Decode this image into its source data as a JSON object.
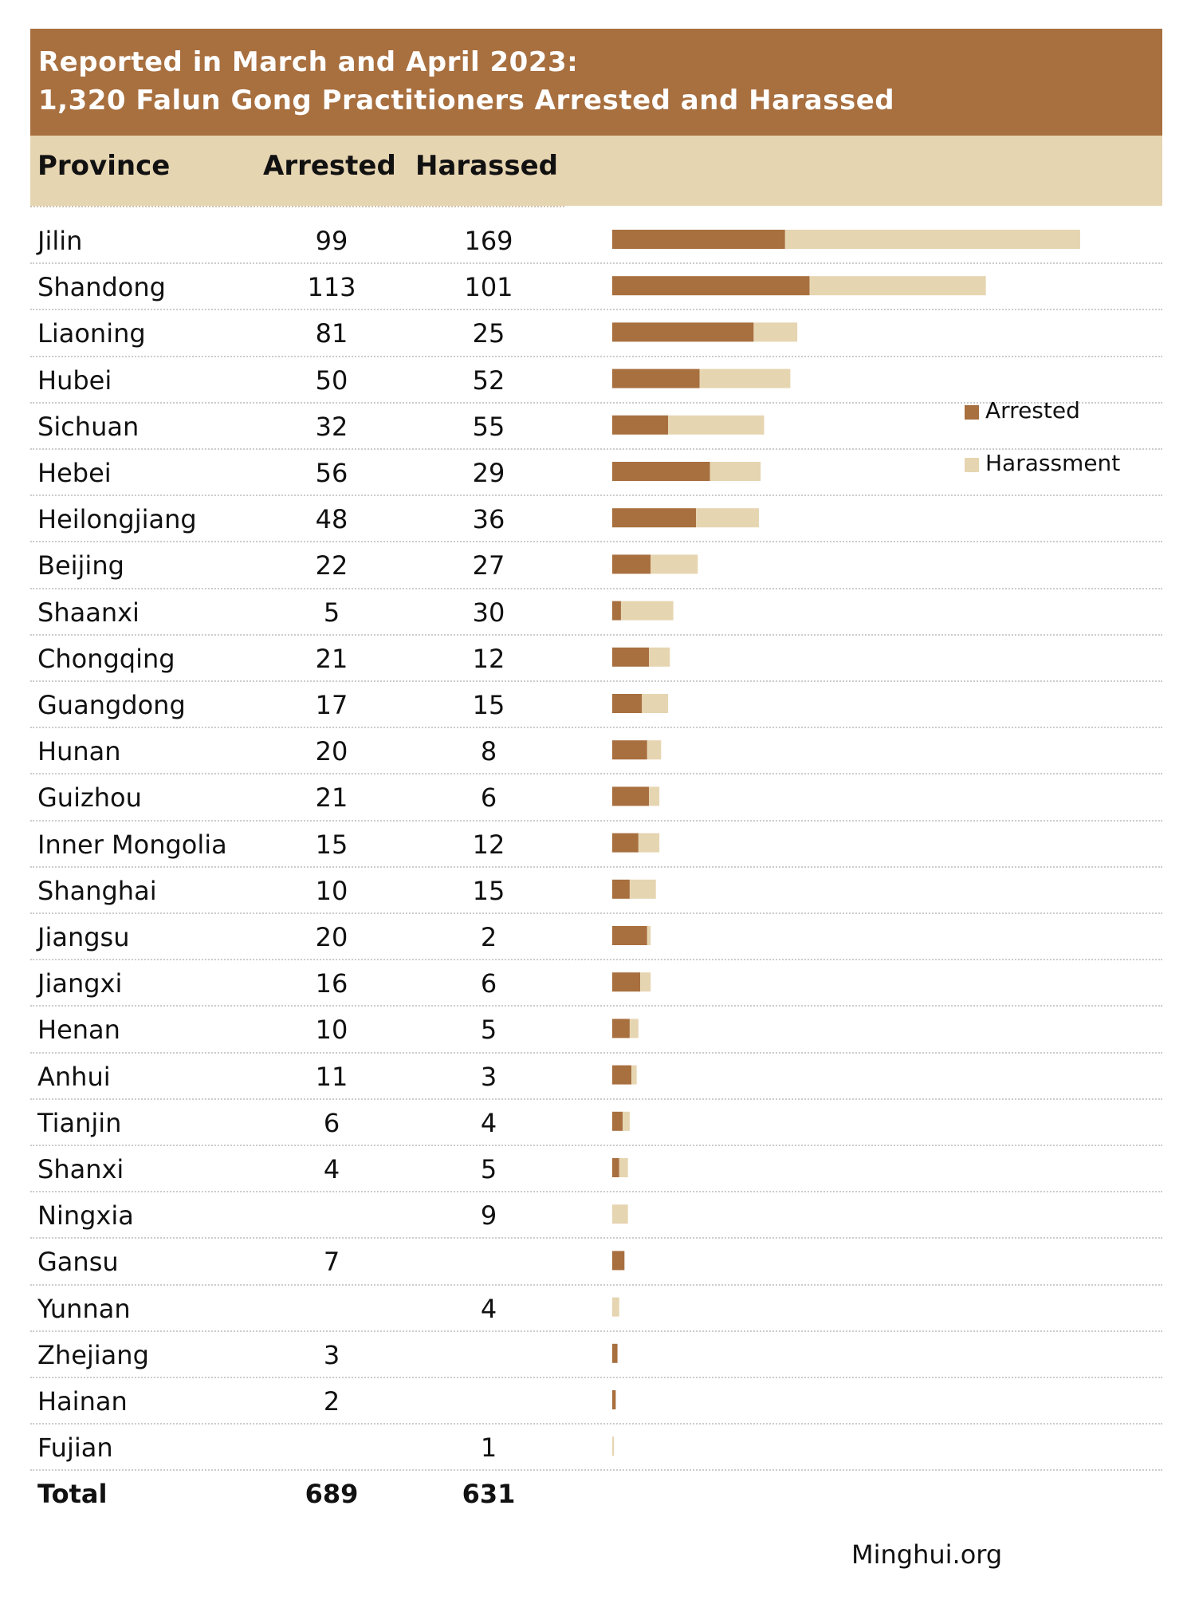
{
  "title_line1": "Reported in March and April 2023:",
  "title_line2": "1,320 Falun Gong Practitioners Arrested and Harassed",
  "headers": {
    "province": "Province",
    "arrested": "Arrested",
    "harassed": "Harassed"
  },
  "colors": {
    "arrested": "#a86f3f",
    "harassed": "#e6d5b1",
    "title_bg": "#a86f3f",
    "header_bg": "#e6d5b1"
  },
  "chart_data": {
    "type": "bar",
    "stacked": true,
    "orientation": "horizontal",
    "title": "Reported in March and April 2023: 1,320 Falun Gong Practitioners Arrested and Harassed",
    "categories": [
      "Jilin",
      "Shandong",
      "Liaoning",
      "Hubei",
      "Sichuan",
      "Hebei",
      "Heilongjiang",
      "Beijing",
      "Shaanxi",
      "Chongqing",
      "Guangdong",
      "Hunan",
      "Guizhou",
      "Inner Mongolia",
      "Shanghai",
      "Jiangsu",
      "Jiangxi",
      "Henan",
      "Anhui",
      "Tianjin",
      "Shanxi",
      "Ningxia",
      "Gansu",
      "Yunnan",
      "Zhejiang",
      "Hainan",
      "Fujian"
    ],
    "series": [
      {
        "name": "Arrested",
        "values": [
          99,
          113,
          81,
          50,
          32,
          56,
          48,
          22,
          5,
          21,
          17,
          20,
          21,
          15,
          10,
          20,
          16,
          10,
          11,
          6,
          4,
          null,
          7,
          null,
          3,
          2,
          null
        ]
      },
      {
        "name": "Harassment",
        "values": [
          169,
          101,
          25,
          52,
          55,
          29,
          36,
          27,
          30,
          12,
          15,
          8,
          6,
          12,
          15,
          2,
          6,
          5,
          3,
          4,
          5,
          9,
          null,
          4,
          null,
          null,
          1
        ]
      }
    ],
    "legend": "right",
    "totals": {
      "label": "Total",
      "arrested": "689",
      "harassed": "631"
    }
  },
  "source": "Minghui.org"
}
